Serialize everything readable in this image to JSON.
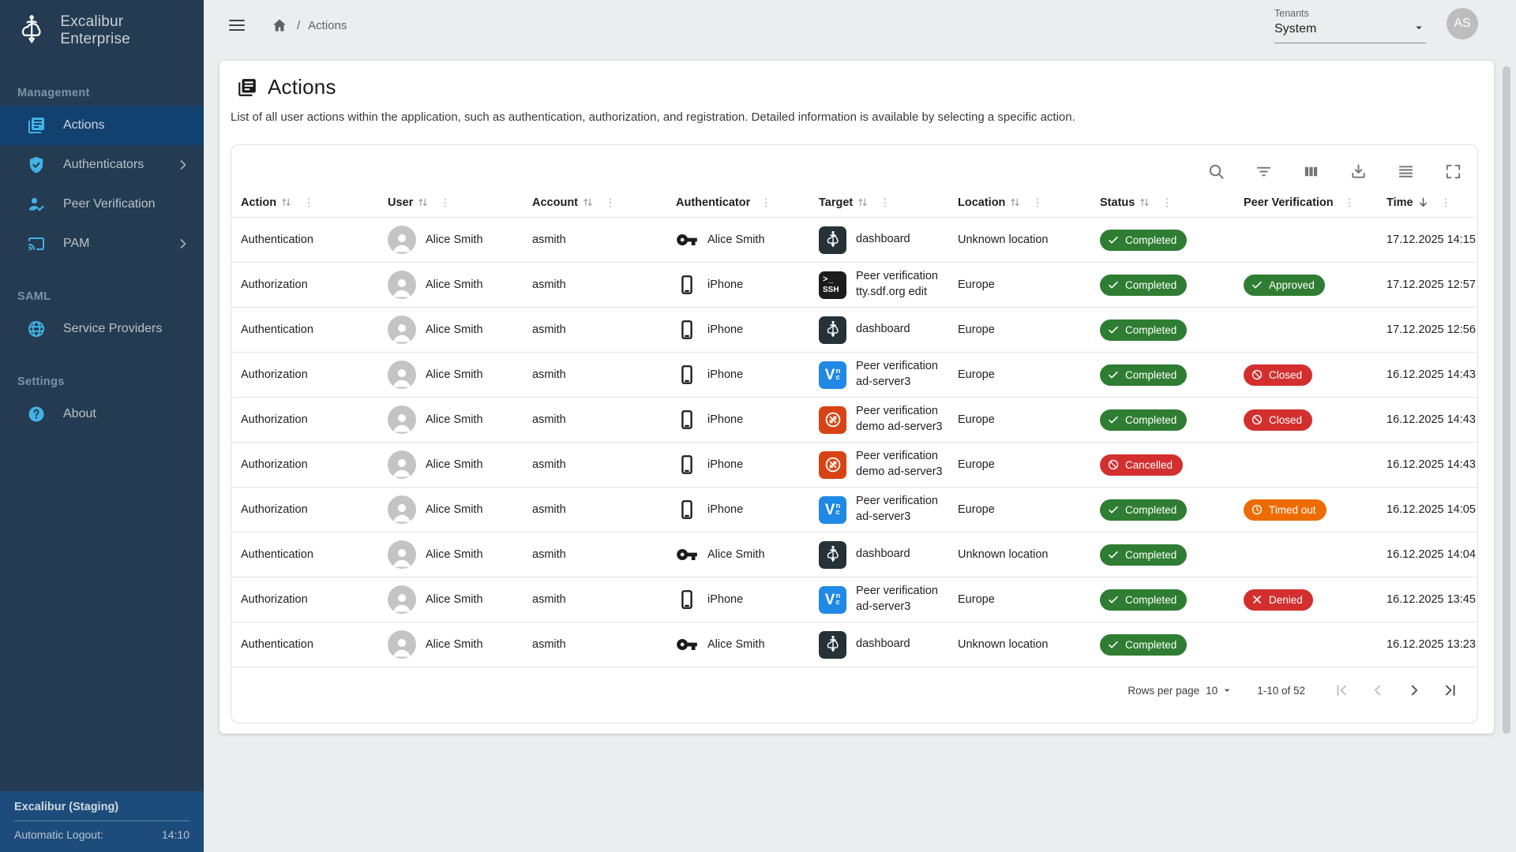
{
  "app": {
    "name": "Excalibur Enterprise",
    "environment": "Excalibur (Staging)",
    "auto_logout_label": "Automatic Logout:",
    "auto_logout_time": "14:10"
  },
  "topbar": {
    "breadcrumb_separator": "/",
    "breadcrumb_current": "Actions",
    "tenants_label": "Tenants",
    "tenant_selected": "System",
    "avatar_initials": "AS"
  },
  "sidebar": {
    "sections": [
      {
        "label": "Management",
        "items": [
          {
            "label": "Actions",
            "icon": "library-icon",
            "active": true,
            "chevron": false
          },
          {
            "label": "Authenticators",
            "icon": "shield-check-icon",
            "active": false,
            "chevron": true
          },
          {
            "label": "Peer Verification",
            "icon": "person-check-icon",
            "active": false,
            "chevron": false
          },
          {
            "label": "PAM",
            "icon": "cast-icon",
            "active": false,
            "chevron": true
          }
        ]
      },
      {
        "label": "SAML",
        "items": [
          {
            "label": "Service Providers",
            "icon": "globe-icon",
            "active": false,
            "chevron": false
          }
        ]
      },
      {
        "label": "Settings",
        "items": [
          {
            "label": "About",
            "icon": "help-icon",
            "active": false,
            "chevron": false
          }
        ]
      }
    ]
  },
  "page": {
    "title": "Actions",
    "description": "List of all user actions within the application, such as authentication, authorization, and registration. Detailed information is available by selecting a specific action."
  },
  "table": {
    "toolbar_icons": [
      "search-icon",
      "filter-icon",
      "columns-icon",
      "download-icon",
      "density-icon",
      "fullscreen-icon"
    ],
    "columns": [
      {
        "label": "Action",
        "sort": true,
        "menu": true
      },
      {
        "label": "User",
        "sort": true,
        "menu": true
      },
      {
        "label": "Account",
        "sort": true,
        "menu": true
      },
      {
        "label": "Authenticator",
        "sort": false,
        "menu": true
      },
      {
        "label": "Target",
        "sort": true,
        "menu": true
      },
      {
        "label": "Location",
        "sort": true,
        "menu": true
      },
      {
        "label": "Status",
        "sort": true,
        "menu": true
      },
      {
        "label": "Peer Verification",
        "sort": false,
        "menu": true
      },
      {
        "label": "Time",
        "sort": false,
        "sorted_desc": true,
        "menu": true
      }
    ],
    "rows": [
      {
        "action": "Authentication",
        "user": "Alice Smith",
        "account": "asmith",
        "authenticator": {
          "icon": "key-icon",
          "label": "Alice Smith"
        },
        "target": {
          "icon": "excalibur",
          "label": "dashboard"
        },
        "location": "Unknown location",
        "status": {
          "label": "Completed",
          "kind": "success",
          "icon": "check-icon"
        },
        "peer": null,
        "time": "17.12.2025 14:15"
      },
      {
        "action": "Authorization",
        "user": "Alice Smith",
        "account": "asmith",
        "authenticator": {
          "icon": "smartphone-icon",
          "label": "iPhone"
        },
        "target": {
          "icon": "ssh",
          "label": "Peer verification tty.sdf.org edit"
        },
        "location": "Europe",
        "status": {
          "label": "Completed",
          "kind": "success",
          "icon": "check-icon"
        },
        "peer": {
          "label": "Approved",
          "kind": "success",
          "icon": "check-icon"
        },
        "time": "17.12.2025 12:57"
      },
      {
        "action": "Authentication",
        "user": "Alice Smith",
        "account": "asmith",
        "authenticator": {
          "icon": "smartphone-icon",
          "label": "iPhone"
        },
        "target": {
          "icon": "excalibur",
          "label": "dashboard"
        },
        "location": "Europe",
        "status": {
          "label": "Completed",
          "kind": "success",
          "icon": "check-icon"
        },
        "peer": null,
        "time": "17.12.2025 12:56"
      },
      {
        "action": "Authorization",
        "user": "Alice Smith",
        "account": "asmith",
        "authenticator": {
          "icon": "smartphone-icon",
          "label": "iPhone"
        },
        "target": {
          "icon": "vnc",
          "label": "Peer verification ad-server3"
        },
        "location": "Europe",
        "status": {
          "label": "Completed",
          "kind": "success",
          "icon": "check-icon"
        },
        "peer": {
          "label": "Closed",
          "kind": "danger",
          "icon": "ban-icon"
        },
        "time": "16.12.2025 14:43"
      },
      {
        "action": "Authorization",
        "user": "Alice Smith",
        "account": "asmith",
        "authenticator": {
          "icon": "smartphone-icon",
          "label": "iPhone"
        },
        "target": {
          "icon": "rdp",
          "label": "Peer verification demo ad-server3"
        },
        "location": "Europe",
        "status": {
          "label": "Completed",
          "kind": "success",
          "icon": "check-icon"
        },
        "peer": {
          "label": "Closed",
          "kind": "danger",
          "icon": "ban-icon"
        },
        "time": "16.12.2025 14:43"
      },
      {
        "action": "Authorization",
        "user": "Alice Smith",
        "account": "asmith",
        "authenticator": {
          "icon": "smartphone-icon",
          "label": "iPhone"
        },
        "target": {
          "icon": "rdp",
          "label": "Peer verification demo ad-server3"
        },
        "location": "Europe",
        "status": {
          "label": "Cancelled",
          "kind": "danger",
          "icon": "ban-icon"
        },
        "peer": null,
        "time": "16.12.2025 14:43"
      },
      {
        "action": "Authorization",
        "user": "Alice Smith",
        "account": "asmith",
        "authenticator": {
          "icon": "smartphone-icon",
          "label": "iPhone"
        },
        "target": {
          "icon": "vnc",
          "label": "Peer verification ad-server3"
        },
        "location": "Europe",
        "status": {
          "label": "Completed",
          "kind": "success",
          "icon": "check-icon"
        },
        "peer": {
          "label": "Timed out",
          "kind": "warning",
          "icon": "clock-icon"
        },
        "time": "16.12.2025 14:05"
      },
      {
        "action": "Authentication",
        "user": "Alice Smith",
        "account": "asmith",
        "authenticator": {
          "icon": "key-icon",
          "label": "Alice Smith"
        },
        "target": {
          "icon": "excalibur",
          "label": "dashboard"
        },
        "location": "Unknown location",
        "status": {
          "label": "Completed",
          "kind": "success",
          "icon": "check-icon"
        },
        "peer": null,
        "time": "16.12.2025 14:04"
      },
      {
        "action": "Authorization",
        "user": "Alice Smith",
        "account": "asmith",
        "authenticator": {
          "icon": "smartphone-icon",
          "label": "iPhone"
        },
        "target": {
          "icon": "vnc",
          "label": "Peer verification ad-server3"
        },
        "location": "Europe",
        "status": {
          "label": "Completed",
          "kind": "success",
          "icon": "check-icon"
        },
        "peer": {
          "label": "Denied",
          "kind": "danger",
          "icon": "x-icon"
        },
        "time": "16.12.2025 13:45"
      },
      {
        "action": "Authentication",
        "user": "Alice Smith",
        "account": "asmith",
        "authenticator": {
          "icon": "key-icon",
          "label": "Alice Smith"
        },
        "target": {
          "icon": "excalibur",
          "label": "dashboard"
        },
        "location": "Unknown location",
        "status": {
          "label": "Completed",
          "kind": "success",
          "icon": "check-icon"
        },
        "peer": null,
        "time": "16.12.2025 13:23"
      }
    ],
    "pagination": {
      "rows_per_page_label": "Rows per page",
      "rows_per_page_value": "10",
      "range_text": "1-10 of 52",
      "nav": [
        {
          "icon": "first-page-icon",
          "disabled": true
        },
        {
          "icon": "prev-page-icon",
          "disabled": true
        },
        {
          "icon": "next-page-icon",
          "disabled": false
        },
        {
          "icon": "last-page-icon",
          "disabled": false
        }
      ]
    }
  },
  "colors": {
    "sidebar_bg": "#253b52",
    "sidebar_active_bg": "#12416f",
    "sidebar_footer_bg": "#1d4c7c",
    "accent_blue": "#41b3e6",
    "success": "#2e7d32",
    "danger": "#d32f2f",
    "warning": "#ed6c02",
    "vnc_icon_bg": "#2088e5",
    "rdp_icon_bg": "#d84315",
    "page_bg": "#ebedef"
  }
}
